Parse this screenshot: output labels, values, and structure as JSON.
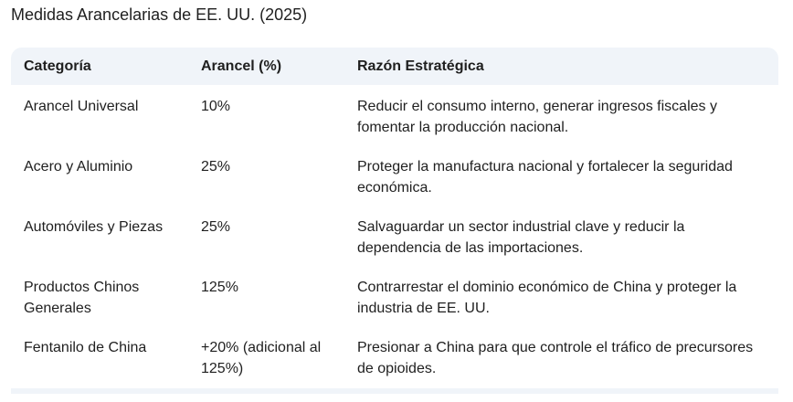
{
  "title": "Medidas Arancelarias de EE. UU. (2025)",
  "table": {
    "headers": [
      "Categoría",
      "Arancel (%)",
      "Razón Estratégica"
    ],
    "rows": [
      {
        "category": "Arancel Universal",
        "tariff": "10%",
        "reason": "Reducir el consumo interno, generar ingresos fiscales y fomentar la producción nacional."
      },
      {
        "category": "Acero y Aluminio",
        "tariff": "25%",
        "reason": "Proteger la manufactura nacional y fortalecer la seguridad económica."
      },
      {
        "category": "Automóviles y Piezas",
        "tariff": "25%",
        "reason": "Salvaguardar un sector industrial clave y reducir la dependencia de las importaciones."
      },
      {
        "category": "Productos Chinos Generales",
        "tariff": "125%",
        "reason": "Contrarrestar el dominio económico de China y proteger la industria de EE. UU."
      },
      {
        "category": "Fentanilo de China",
        "tariff": "+20% (adicional al 125%)",
        "reason": "Presionar a China para que controle el tráfico de precursores de opioides."
      }
    ]
  }
}
